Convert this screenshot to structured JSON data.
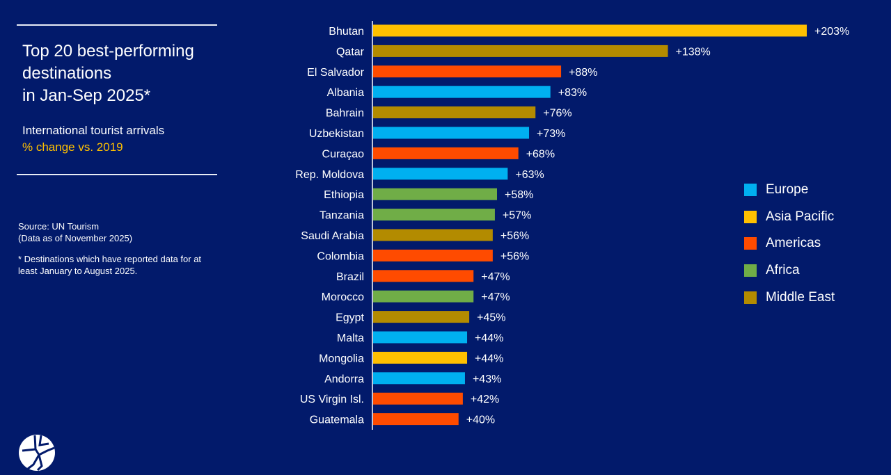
{
  "header": {
    "title_lines": [
      "Top 20 best-performing",
      "destinations",
      "in Jan-Sep 2025*"
    ],
    "subtitle": "International tourist arrivals",
    "subtitle_highlight": "% change vs. 2019",
    "source_line1": "Source: UN Tourism",
    "source_line2": "(Data as of November 2025)",
    "footnote": "* Destinations which have reported data for at least January to August 2025."
  },
  "logo": {
    "icon": "un-tourism-globe-logo"
  },
  "colors": {
    "background": "#021a6b",
    "Europe": "#00b0f0",
    "Asia Pacific": "#ffc000",
    "Americas": "#ff4b00",
    "Africa": "#70ad47",
    "Middle East": "#b38b00"
  },
  "chart_data": {
    "type": "bar",
    "orientation": "horizontal",
    "title": "Top 20 best-performing destinations in Jan-Sep 2025*",
    "ylabel": "International tourist arrivals % change vs. 2019",
    "categories": [
      "Bhutan",
      "Qatar",
      "El Salvador",
      "Albania",
      "Bahrain",
      "Uzbekistan",
      "Curaçao",
      "Rep. Moldova",
      "Ethiopia",
      "Tanzania",
      "Saudi Arabia",
      "Colombia",
      "Brazil",
      "Morocco",
      "Egypt",
      "Malta",
      "Mongolia",
      "Andorra",
      "US Virgin Isl.",
      "Guatemala"
    ],
    "values": [
      203,
      138,
      88,
      83,
      76,
      73,
      68,
      63,
      58,
      57,
      56,
      56,
      47,
      47,
      45,
      44,
      44,
      43,
      42,
      40
    ],
    "data_labels": [
      "+203%",
      "+138%",
      "+88%",
      "+83%",
      "+76%",
      "+73%",
      "+68%",
      "+63%",
      "+58%",
      "+57%",
      "+56%",
      "+56%",
      "+47%",
      "+47%",
      "+45%",
      "+44%",
      "+44%",
      "+43%",
      "+42%",
      "+40%"
    ],
    "regions": [
      "Asia Pacific",
      "Middle East",
      "Americas",
      "Europe",
      "Middle East",
      "Europe",
      "Americas",
      "Europe",
      "Africa",
      "Africa",
      "Middle East",
      "Americas",
      "Americas",
      "Africa",
      "Middle East",
      "Europe",
      "Asia Pacific",
      "Europe",
      "Americas",
      "Americas"
    ],
    "legend": [
      "Europe",
      "Asia Pacific",
      "Americas",
      "Africa",
      "Middle East"
    ],
    "legend_placement": "right",
    "xlim": [
      0,
      203
    ],
    "grid": false
  }
}
